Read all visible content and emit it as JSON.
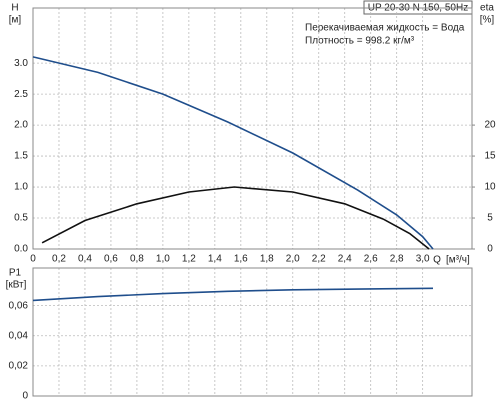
{
  "chart_data": [
    {
      "type": "line",
      "title": "UP 20-30 N 150, 50Hz",
      "annotations": [
        "Перекачиваемая жидкость = Вода",
        "Плотность = 998.2 кг/м³"
      ],
      "y_label": "H",
      "y_unit": "[м]",
      "y2_label": "eta",
      "y2_unit": "[%]",
      "x_label": "Q",
      "x_unit": "[м³/ч]",
      "xlim": [
        0,
        3.38
      ],
      "xticks": [
        0,
        {
          "value": 0.2,
          "label": "0,2"
        },
        {
          "value": 0.4,
          "label": "0,4"
        },
        {
          "value": 0.6,
          "label": "0,6"
        },
        {
          "value": 0.8,
          "label": "0,8"
        },
        {
          "value": 1.0,
          "label": "1,0"
        },
        {
          "value": 1.2,
          "label": "1,2"
        },
        {
          "value": 1.4,
          "label": "1,4"
        },
        {
          "value": 1.6,
          "label": "1,6"
        },
        {
          "value": 1.8,
          "label": "1,8"
        },
        {
          "value": 2.0,
          "label": "2,0"
        },
        {
          "value": 2.2,
          "label": "2,2"
        },
        {
          "value": 2.4,
          "label": "2,4"
        },
        {
          "value": 2.6,
          "label": "2,6"
        },
        {
          "value": 2.8,
          "label": "2,8"
        },
        {
          "value": 3.0,
          "label": "3,0"
        }
      ],
      "ylim": [
        0,
        3.89
      ],
      "yticks": [
        {
          "value": 0,
          "label": "0.0"
        },
        {
          "value": 0.5,
          "label": "0.5"
        },
        {
          "value": 1.0,
          "label": "1.0"
        },
        {
          "value": 1.5,
          "label": "1.5"
        },
        {
          "value": 2.0,
          "label": "2.0"
        },
        {
          "value": 2.5,
          "label": "2.5"
        },
        {
          "value": 3.0,
          "label": "3.0"
        }
      ],
      "y2lim": [
        0,
        38.9
      ],
      "y2ticks": [
        0,
        5,
        10,
        15,
        20
      ],
      "grid": true,
      "series": [
        {
          "name": "H",
          "color": "#1f4e8c",
          "x": [
            0,
            0.5,
            1.0,
            1.5,
            2.0,
            2.5,
            2.8,
            3.0,
            3.08
          ],
          "values": [
            3.1,
            2.85,
            2.5,
            2.05,
            1.55,
            0.95,
            0.55,
            0.2,
            0
          ]
        },
        {
          "name": "eta",
          "color": "#111111",
          "axis": "y2",
          "x": [
            0.07,
            0.4,
            0.8,
            1.2,
            1.55,
            2.0,
            2.4,
            2.7,
            2.9,
            3.05
          ],
          "values": [
            1,
            4.6,
            7.3,
            9.2,
            10,
            9.2,
            7.3,
            4.8,
            2.5,
            0
          ]
        }
      ]
    },
    {
      "type": "line",
      "y_label": "P1",
      "y_unit": "[кВт]",
      "xlim": [
        0,
        3.38
      ],
      "ylim": [
        0,
        0.085
      ],
      "yticks": [
        0,
        {
          "value": 0.02,
          "label": "0,02"
        },
        {
          "value": 0.04,
          "label": "0,04"
        },
        {
          "value": 0.06,
          "label": "0,06"
        }
      ],
      "grid": true,
      "series": [
        {
          "name": "P1",
          "color": "#1f4e8c",
          "x": [
            0,
            0.5,
            1.0,
            1.5,
            2.0,
            2.5,
            3.08
          ],
          "values": [
            0.0635,
            0.066,
            0.068,
            0.0695,
            0.0705,
            0.071,
            0.0715
          ]
        }
      ]
    }
  ]
}
